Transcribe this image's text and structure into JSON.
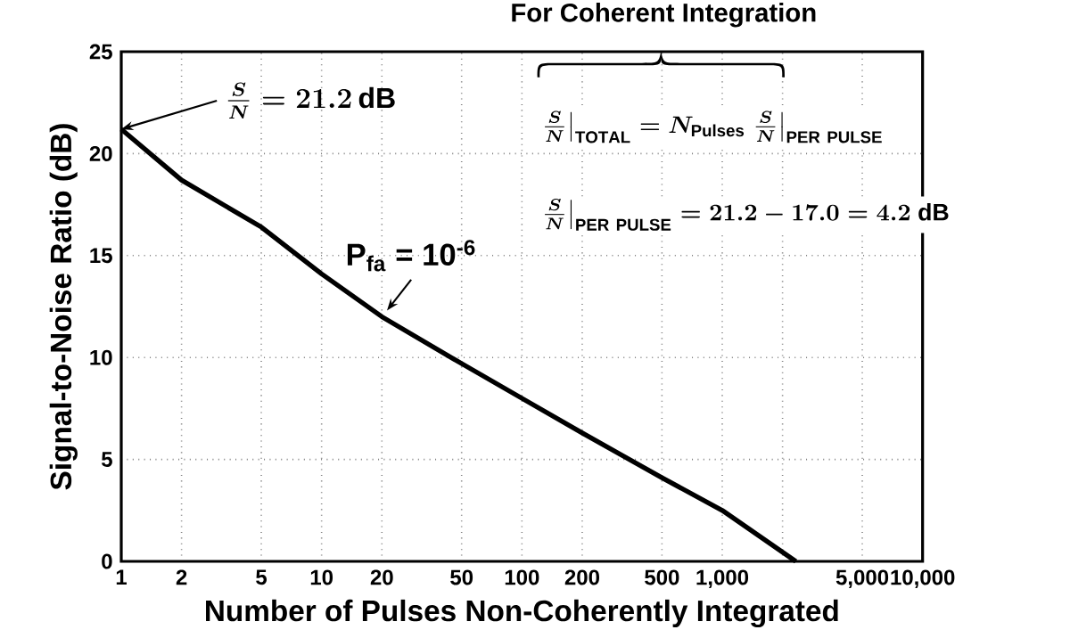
{
  "chart_data": {
    "type": "line",
    "xlabel": "Number of Pulses Non-Coherently Integrated",
    "ylabel": "Signal-to-Noise Ratio (dB)",
    "x": [
      1,
      2,
      5,
      10,
      20,
      50,
      100,
      200,
      500,
      1000,
      2330
    ],
    "series": [
      {
        "color": "#000000",
        "values": [
          21.2,
          18.7,
          16.4,
          14.1,
          12.0,
          9.7,
          8.0,
          6.3,
          4.1,
          2.5,
          0
        ]
      }
    ],
    "log": "x",
    "xlim": [
      1,
      10000
    ],
    "ylim": [
      0,
      25
    ],
    "xticks": [
      1,
      2,
      5,
      10,
      20,
      50,
      100,
      200,
      500,
      {
        "value": 1000,
        "label": "1,000"
      },
      {
        "value": 2000,
        "label": null
      },
      {
        "value": 5000,
        "label": "5,000"
      },
      {
        "value": 10000,
        "label": "10,000"
      }
    ],
    "yticks": [
      0,
      5,
      10,
      15,
      20,
      25
    ],
    "grid": true,
    "marker": "none",
    "line_style": "solid",
    "annotations": [
      "For Coherent Integration",
      {
        "text": "\\frac{S}{N} = 21.2\\,\\mathrm{dB}",
        "x": 1,
        "y": 21.2
      },
      {
        "text": "P$_{fa}$ = 10$^{-6}$",
        "x": 20,
        "y": 12.0
      },
      "\\left.\\frac{S}{N}\\right|_{\\mathrm{TOTAL}} = N_{\\mathrm{Pulses}}\\left.\\frac{S}{N}\\right|_{\\mathrm{PER\\ PULSE}}",
      "\\left.\\frac{S}{N}\\right|_{\\mathrm{PER\\ PULSE}} = 21.2 - 17.0 = 4.2\\ \\mathrm{dB}"
    ]
  }
}
